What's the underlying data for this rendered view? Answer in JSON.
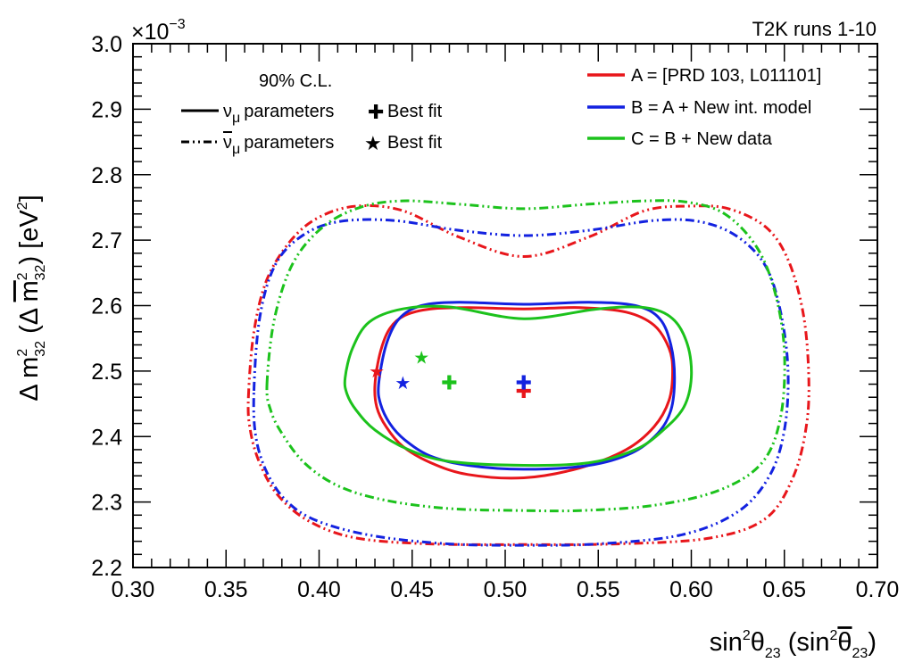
{
  "chart_data": {
    "type": "line",
    "header_right": "T2K runs 1-10",
    "exponent_label": "×10",
    "exponent_power": "−3",
    "xlabel": {
      "base": "sin",
      "sup": "2",
      "greek": "θ",
      "sub": "23",
      "open": " (sin",
      "sup2": "2",
      "greek2": "θ",
      "sub2": "23",
      "close": ")"
    },
    "ylabel": {
      "delta": "Δ m",
      "sup": "2",
      "sub": "32",
      "open": " (Δ ",
      "m2": "m",
      "sup2": "2",
      "sub2": "32",
      "close": ") [eV",
      "sup3": "2",
      "end": "]"
    },
    "xlim": [
      0.3,
      0.7
    ],
    "ylim": [
      2.2,
      3.0
    ],
    "x_ticks": [
      "0.30",
      "0.35",
      "0.40",
      "0.45",
      "0.50",
      "0.55",
      "0.60",
      "0.65",
      "0.70"
    ],
    "y_ticks": [
      "2.2",
      "2.3",
      "2.4",
      "2.5",
      "2.6",
      "2.7",
      "2.8",
      "2.9",
      "3.0"
    ],
    "legend_left": {
      "header": "90% C.L.",
      "solid_label": "parameters",
      "dashed_label": "parameters",
      "nu_symbol": "ν",
      "nu_sub": "μ",
      "best_fit_label": "Best fit"
    },
    "legend_right": [
      {
        "label": "A = [PRD 103, L011101]",
        "color": "#e8161b"
      },
      {
        "label": "B = A + New int. model",
        "color": "#1322e0"
      },
      {
        "label": "C = B + New data",
        "color": "#1cc21c"
      }
    ],
    "colors": {
      "A": "#e8161b",
      "B": "#1322e0",
      "C": "#1cc21c"
    },
    "series": [
      {
        "model": "A",
        "style": "solid",
        "color": "#e8161b",
        "x": [
          0.43,
          0.433,
          0.438,
          0.446,
          0.46,
          0.48,
          0.51,
          0.54,
          0.565,
          0.58,
          0.588,
          0.59,
          0.588,
          0.58,
          0.565,
          0.54,
          0.51,
          0.48,
          0.46,
          0.445,
          0.436,
          0.431,
          0.43
        ],
        "y": [
          2.48,
          2.53,
          2.565,
          2.585,
          2.595,
          2.597,
          2.595,
          2.597,
          2.59,
          2.57,
          2.535,
          2.5,
          2.455,
          2.415,
          2.38,
          2.352,
          2.337,
          2.342,
          2.36,
          2.385,
          2.415,
          2.445,
          2.48
        ]
      },
      {
        "model": "B",
        "style": "solid",
        "color": "#1322e0",
        "x": [
          0.432,
          0.436,
          0.443,
          0.455,
          0.475,
          0.51,
          0.545,
          0.57,
          0.583,
          0.589,
          0.591,
          0.589,
          0.582,
          0.568,
          0.545,
          0.51,
          0.48,
          0.46,
          0.446,
          0.438,
          0.433,
          0.432
        ],
        "y": [
          2.48,
          2.54,
          2.58,
          2.6,
          2.605,
          2.602,
          2.605,
          2.6,
          2.58,
          2.54,
          2.49,
          2.44,
          2.405,
          2.375,
          2.356,
          2.35,
          2.356,
          2.37,
          2.395,
          2.42,
          2.45,
          2.48
        ]
      },
      {
        "model": "C",
        "style": "solid",
        "color": "#1cc21c",
        "x": [
          0.414,
          0.418,
          0.427,
          0.445,
          0.47,
          0.51,
          0.55,
          0.575,
          0.59,
          0.598,
          0.6,
          0.596,
          0.585,
          0.57,
          0.545,
          0.51,
          0.47,
          0.448,
          0.43,
          0.42,
          0.415,
          0.414
        ],
        "y": [
          2.49,
          2.535,
          2.575,
          2.595,
          2.598,
          2.58,
          2.595,
          2.597,
          2.58,
          2.54,
          2.49,
          2.445,
          2.41,
          2.38,
          2.36,
          2.356,
          2.362,
          2.38,
          2.41,
          2.44,
          2.465,
          2.49
        ]
      },
      {
        "model": "A",
        "style": "dashdot",
        "color": "#e8161b",
        "x": [
          0.362,
          0.365,
          0.372,
          0.385,
          0.4,
          0.42,
          0.445,
          0.475,
          0.51,
          0.545,
          0.575,
          0.6,
          0.62,
          0.64,
          0.652,
          0.66,
          0.663,
          0.662,
          0.655,
          0.64,
          0.61,
          0.56,
          0.51,
          0.46,
          0.42,
          0.395,
          0.378,
          0.368,
          0.363,
          0.362
        ],
        "y": [
          2.46,
          2.56,
          2.64,
          2.7,
          2.735,
          2.752,
          2.745,
          2.705,
          2.675,
          2.705,
          2.745,
          2.752,
          2.748,
          2.72,
          2.67,
          2.59,
          2.5,
          2.42,
          2.34,
          2.275,
          2.245,
          2.236,
          2.235,
          2.236,
          2.245,
          2.27,
          2.31,
          2.36,
          2.41,
          2.46
        ]
      },
      {
        "model": "B",
        "style": "dashdot",
        "color": "#1322e0",
        "x": [
          0.365,
          0.368,
          0.376,
          0.39,
          0.41,
          0.44,
          0.475,
          0.51,
          0.545,
          0.58,
          0.605,
          0.625,
          0.64,
          0.648,
          0.652,
          0.65,
          0.642,
          0.625,
          0.595,
          0.55,
          0.51,
          0.47,
          0.43,
          0.4,
          0.383,
          0.372,
          0.366,
          0.365
        ],
        "y": [
          2.47,
          2.58,
          2.66,
          2.705,
          2.728,
          2.73,
          2.715,
          2.707,
          2.715,
          2.73,
          2.728,
          2.705,
          2.66,
          2.59,
          2.5,
          2.41,
          2.34,
          2.285,
          2.25,
          2.236,
          2.234,
          2.236,
          2.248,
          2.27,
          2.3,
          2.345,
          2.4,
          2.47
        ]
      },
      {
        "model": "C",
        "style": "dashdot",
        "color": "#1cc21c",
        "x": [
          0.372,
          0.376,
          0.386,
          0.402,
          0.422,
          0.445,
          0.475,
          0.51,
          0.545,
          0.575,
          0.598,
          0.618,
          0.635,
          0.645,
          0.65,
          0.648,
          0.638,
          0.615,
          0.58,
          0.54,
          0.51,
          0.47,
          0.435,
          0.41,
          0.392,
          0.38,
          0.374,
          0.372
        ],
        "y": [
          2.48,
          2.58,
          2.665,
          2.72,
          2.75,
          2.76,
          2.755,
          2.748,
          2.755,
          2.76,
          2.758,
          2.74,
          2.69,
          2.62,
          2.53,
          2.43,
          2.36,
          2.318,
          2.295,
          2.287,
          2.287,
          2.29,
          2.303,
          2.325,
          2.36,
          2.405,
          2.44,
          2.48
        ]
      }
    ],
    "best_fit_nu": [
      {
        "model": "A",
        "x": 0.51,
        "y": 2.47,
        "color": "#e8161b"
      },
      {
        "model": "B",
        "x": 0.51,
        "y": 2.483,
        "color": "#1322e0"
      },
      {
        "model": "C",
        "x": 0.47,
        "y": 2.483,
        "color": "#1cc21c"
      }
    ],
    "best_fit_nubar": [
      {
        "model": "A",
        "x": 0.431,
        "y": 2.5,
        "color": "#e8161b"
      },
      {
        "model": "B",
        "x": 0.445,
        "y": 2.482,
        "color": "#1322e0"
      },
      {
        "model": "C",
        "x": 0.455,
        "y": 2.521,
        "color": "#1cc21c"
      }
    ]
  }
}
